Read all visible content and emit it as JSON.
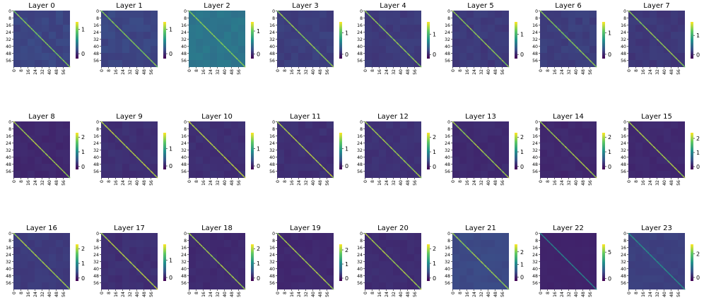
{
  "chart_data": {
    "type": "heatmap",
    "description_grid": "8 columns x 3 rows of 64x64 per-layer heatmaps with viridis colorbars",
    "colormap_stops": [
      "#440154",
      "#3b528b",
      "#21918c",
      "#5ec962",
      "#fde725"
    ],
    "xticks": [
      "0",
      "8",
      "16",
      "24",
      "32",
      "40",
      "48",
      "56"
    ],
    "yticks": [
      "0",
      "8",
      "16",
      "24",
      "32",
      "40",
      "48",
      "56"
    ],
    "size": 64,
    "layers": [
      {
        "title": "Layer 0",
        "diag": 1.1,
        "off": 0.12,
        "vmin": -0.2,
        "vmax": 1.3,
        "cbar_ticks": [
          0,
          1
        ]
      },
      {
        "title": "Layer 1",
        "diag": 1.1,
        "off": 0.12,
        "vmin": -0.2,
        "vmax": 1.3,
        "cbar_ticks": [
          0,
          1
        ]
      },
      {
        "title": "Layer 2",
        "diag": 1.2,
        "off": 0.42,
        "vmin": -0.2,
        "vmax": 1.4,
        "cbar_ticks": [
          0,
          1
        ]
      },
      {
        "title": "Layer 3",
        "diag": 1.3,
        "off": 0.12,
        "vmin": -0.2,
        "vmax": 1.5,
        "cbar_ticks": [
          0,
          1
        ]
      },
      {
        "title": "Layer 4",
        "diag": 1.4,
        "off": 0.12,
        "vmin": -0.2,
        "vmax": 1.6,
        "cbar_ticks": [
          0,
          1
        ]
      },
      {
        "title": "Layer 5",
        "diag": 1.4,
        "off": 0.12,
        "vmin": -0.2,
        "vmax": 1.6,
        "cbar_ticks": [
          0,
          1
        ]
      },
      {
        "title": "Layer 6",
        "diag": 1.3,
        "off": 0.12,
        "vmin": -0.2,
        "vmax": 1.5,
        "cbar_ticks": [
          0,
          1
        ]
      },
      {
        "title": "Layer 7",
        "diag": 1.5,
        "off": 0.12,
        "vmin": -0.2,
        "vmax": 1.7,
        "cbar_ticks": [
          0,
          1
        ]
      },
      {
        "title": "Layer 8",
        "diag": 2.1,
        "off": 0.1,
        "vmin": -0.2,
        "vmax": 2.3,
        "cbar_ticks": [
          0,
          1,
          2
        ]
      },
      {
        "title": "Layer 9",
        "diag": 1.8,
        "off": 0.1,
        "vmin": -0.2,
        "vmax": 1.9,
        "cbar_ticks": [
          0,
          1
        ]
      },
      {
        "title": "Layer 10",
        "diag": 1.8,
        "off": 0.1,
        "vmin": -0.2,
        "vmax": 1.9,
        "cbar_ticks": [
          0,
          1
        ]
      },
      {
        "title": "Layer 11",
        "diag": 1.8,
        "off": 0.1,
        "vmin": -0.2,
        "vmax": 1.9,
        "cbar_ticks": [
          0,
          1
        ]
      },
      {
        "title": "Layer 12",
        "diag": 2.1,
        "off": 0.18,
        "vmin": -0.2,
        "vmax": 2.3,
        "cbar_ticks": [
          0,
          1,
          2
        ]
      },
      {
        "title": "Layer 13",
        "diag": 2.1,
        "off": 0.12,
        "vmin": -0.2,
        "vmax": 2.3,
        "cbar_ticks": [
          0,
          1,
          2
        ]
      },
      {
        "title": "Layer 14",
        "diag": 2.1,
        "off": 0.1,
        "vmin": -0.2,
        "vmax": 2.3,
        "cbar_ticks": [
          0,
          1,
          2
        ]
      },
      {
        "title": "Layer 15",
        "diag": 2.2,
        "off": 0.12,
        "vmin": -0.2,
        "vmax": 2.4,
        "cbar_ticks": [
          0,
          1,
          2
        ]
      },
      {
        "title": "Layer 16",
        "diag": 2.1,
        "off": 0.25,
        "vmin": -0.2,
        "vmax": 2.3,
        "cbar_ticks": [
          0,
          1,
          2
        ]
      },
      {
        "title": "Layer 17",
        "diag": 1.8,
        "off": 0.1,
        "vmin": -0.2,
        "vmax": 1.9,
        "cbar_ticks": [
          0,
          1
        ]
      },
      {
        "title": "Layer 18",
        "diag": 2.1,
        "off": 0.12,
        "vmin": -0.2,
        "vmax": 2.3,
        "cbar_ticks": [
          0,
          1,
          2
        ]
      },
      {
        "title": "Layer 19",
        "diag": 2.2,
        "off": 0.12,
        "vmin": -0.2,
        "vmax": 2.4,
        "cbar_ticks": [
          0,
          1,
          2
        ]
      },
      {
        "title": "Layer 20",
        "diag": 2.1,
        "off": 0.14,
        "vmin": -0.2,
        "vmax": 2.3,
        "cbar_ticks": [
          0,
          1,
          2
        ]
      },
      {
        "title": "Layer 21",
        "diag": 2.3,
        "off": 0.35,
        "vmin": -0.3,
        "vmax": 2.6,
        "cbar_ticks": [
          0,
          1,
          2
        ]
      },
      {
        "title": "Layer 22",
        "diag": 3.0,
        "off": 0.25,
        "vmin": -0.5,
        "vmax": 6.5,
        "cbar_ticks": [
          0,
          5
        ]
      },
      {
        "title": "Layer 23",
        "diag": 1.4,
        "off": 0.3,
        "vmin": -0.3,
        "vmax": 2.8,
        "cbar_ticks": [
          0,
          2
        ]
      }
    ]
  }
}
